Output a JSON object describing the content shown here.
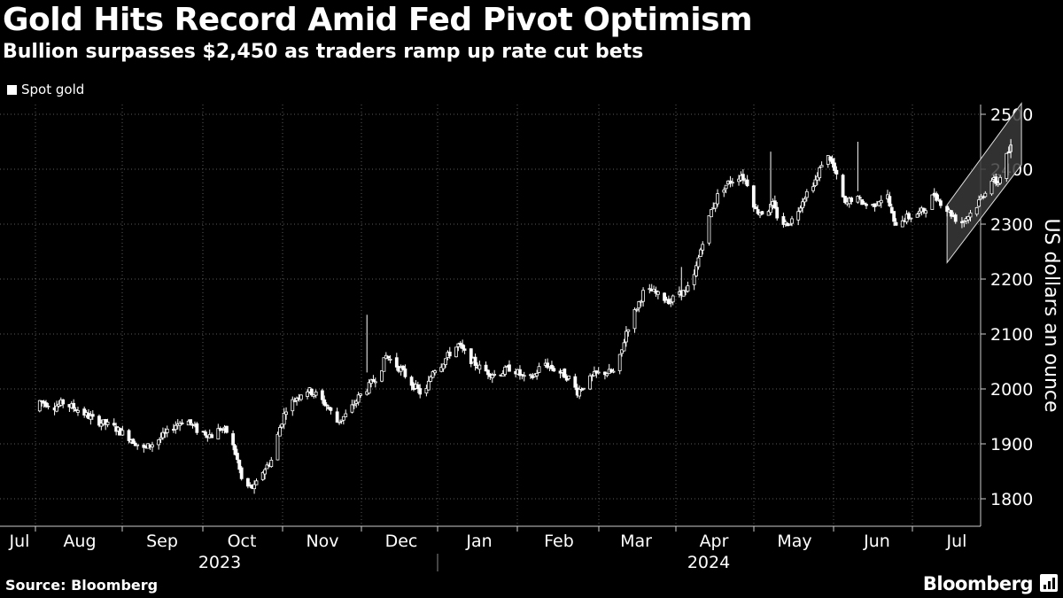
{
  "title": "Gold Hits Record Amid Fed Pivot Optimism",
  "subtitle": "Bullion surpasses $2,450 as traders ramp up rate cut bets",
  "legend": {
    "label": "Spot gold",
    "color": "#ffffff"
  },
  "source": "Source: Bloomberg",
  "brand": "Bloomberg",
  "chart_data": {
    "type": "candlestick",
    "series": [
      {
        "name": "Spot gold"
      }
    ],
    "ylabel": "US dollars an ounce",
    "ylim": [
      1760,
      2520
    ],
    "yticks": [
      1800,
      1900,
      2000,
      2100,
      2200,
      2300,
      2400,
      2500
    ],
    "x_months": [
      "Jul",
      "Aug",
      "Sep",
      "Oct",
      "Nov",
      "Dec",
      "Jan",
      "Feb",
      "Mar",
      "Apr",
      "May",
      "Jun",
      "Jul"
    ],
    "years": [
      "2023",
      "2024"
    ],
    "grid": true,
    "colors": {
      "background": "#000000",
      "candle": "#ffffff",
      "grid": "#5a5a5a",
      "channel_fill": "#3a3a3a"
    },
    "price_path": [
      [
        "2023-07-01",
        1960
      ],
      [
        "2023-07-03",
        1978
      ],
      [
        "2023-07-10",
        1968
      ],
      [
        "2023-07-14",
        1975
      ],
      [
        "2023-07-21",
        1962
      ],
      [
        "2023-07-28",
        1945
      ],
      [
        "2023-08-07",
        1930
      ],
      [
        "2023-08-14",
        1912
      ],
      [
        "2023-08-21",
        1890
      ],
      [
        "2023-08-25",
        1900
      ],
      [
        "2023-09-01",
        1920
      ],
      [
        "2023-09-05",
        1935
      ],
      [
        "2023-09-10",
        1945
      ],
      [
        "2023-09-15",
        1925
      ],
      [
        "2023-09-22",
        1915
      ],
      [
        "2023-09-26",
        1928
      ],
      [
        "2023-09-30",
        1920
      ],
      [
        "2023-10-04",
        1870
      ],
      [
        "2023-10-06",
        1835
      ],
      [
        "2023-10-09",
        1822
      ],
      [
        "2023-10-12",
        1820
      ],
      [
        "2023-10-16",
        1850
      ],
      [
        "2023-10-20",
        1870
      ],
      [
        "2023-10-24",
        1930
      ],
      [
        "2023-10-27",
        1965
      ],
      [
        "2023-11-01",
        1985
      ],
      [
        "2023-11-05",
        2000
      ],
      [
        "2023-11-10",
        1990
      ],
      [
        "2023-11-15",
        1970
      ],
      [
        "2023-11-20",
        1940
      ],
      [
        "2023-11-25",
        1955
      ],
      [
        "2023-11-30",
        1985
      ],
      [
        "2023-12-05",
        2005
      ],
      [
        "2023-12-10",
        2030
      ],
      [
        "2023-12-13",
        2060
      ],
      [
        "2023-12-16",
        2050
      ],
      [
        "2023-12-20",
        2035
      ],
      [
        "2023-12-25",
        2010
      ],
      [
        "2023-12-31",
        1985
      ],
      [
        "2024-01-04",
        2035
      ],
      [
        "2024-01-08",
        2045
      ],
      [
        "2024-01-12",
        2065
      ],
      [
        "2024-01-16",
        2080
      ],
      [
        "2024-01-20",
        2060
      ],
      [
        "2024-01-27",
        2035
      ],
      [
        "2024-02-03",
        2025
      ],
      [
        "2024-02-10",
        2040
      ],
      [
        "2024-02-17",
        2015
      ],
      [
        "2024-02-21",
        2025
      ],
      [
        "2024-02-25",
        2050
      ],
      [
        "2024-02-28",
        2040
      ],
      [
        "2024-03-04",
        2030
      ],
      [
        "2024-03-08",
        2020
      ],
      [
        "2024-03-12",
        1995
      ],
      [
        "2024-03-16",
        2010
      ],
      [
        "2024-03-20",
        2025
      ],
      [
        "2024-03-24",
        2030
      ],
      [
        "2024-03-30",
        2030
      ],
      [
        "2024-04-02",
        2070
      ],
      [
        "2024-04-04",
        2105
      ],
      [
        "2024-04-08",
        2140
      ],
      [
        "2024-04-12",
        2175
      ],
      [
        "2024-04-16",
        2178
      ],
      [
        "2024-04-20",
        2168
      ],
      [
        "2024-04-25",
        2160
      ],
      [
        "2024-04-29",
        2178
      ],
      [
        "2024-05-02",
        2175
      ],
      [
        "2024-05-06",
        2205
      ],
      [
        "2024-05-10",
        2270
      ],
      [
        "2024-05-14",
        2325
      ],
      [
        "2024-05-18",
        2360
      ],
      [
        "2024-05-22",
        2375
      ],
      [
        "2024-05-28",
        2390
      ],
      [
        "2024-05-31",
        2375
      ],
      [
        "2024-06-04",
        2325
      ],
      [
        "2024-06-08",
        2320
      ],
      [
        "2024-06-12",
        2335
      ],
      [
        "2024-06-15",
        2305
      ],
      [
        "2024-06-18",
        2300
      ],
      [
        "2024-06-22",
        2310
      ],
      [
        "2024-06-26",
        2345
      ],
      [
        "2024-06-30",
        2370
      ],
      [
        "2024-07-03",
        2385
      ],
      [
        "2024-07-06",
        2425
      ],
      [
        "2024-07-09",
        2420
      ],
      [
        "2024-07-12",
        2385
      ],
      [
        "2024-07-16",
        2335
      ],
      [
        "2024-07-20",
        2350
      ],
      [
        "2024-07-24",
        2340
      ],
      [
        "2024-07-28",
        2330
      ],
      [
        "2024-08-01",
        2345
      ],
      [
        "2024-08-05",
        2350
      ],
      [
        "2024-08-08",
        2300
      ],
      [
        "2024-08-12",
        2310
      ],
      [
        "2024-08-17",
        2315
      ],
      [
        "2024-08-22",
        2325
      ],
      [
        "2024-08-27",
        2355
      ],
      [
        "2024-09-01",
        2330
      ],
      [
        "2024-09-05",
        2315
      ],
      [
        "2024-09-08",
        2300
      ],
      [
        "2024-09-11",
        2312
      ],
      [
        "2024-09-15",
        2328
      ],
      [
        "2024-09-19",
        2355
      ],
      [
        "2024-09-23",
        2380
      ],
      [
        "2024-09-26",
        2375
      ],
      [
        "2024-09-29",
        2415
      ],
      [
        "2024-10-02",
        2440
      ]
    ],
    "channel": {
      "upper": [
        [
          "2024-09-02",
          2335
        ],
        [
          "2024-10-07",
          2520
        ]
      ],
      "lower": [
        [
          "2024-09-02",
          2230
        ],
        [
          "2024-10-07",
          2408
        ]
      ]
    }
  }
}
